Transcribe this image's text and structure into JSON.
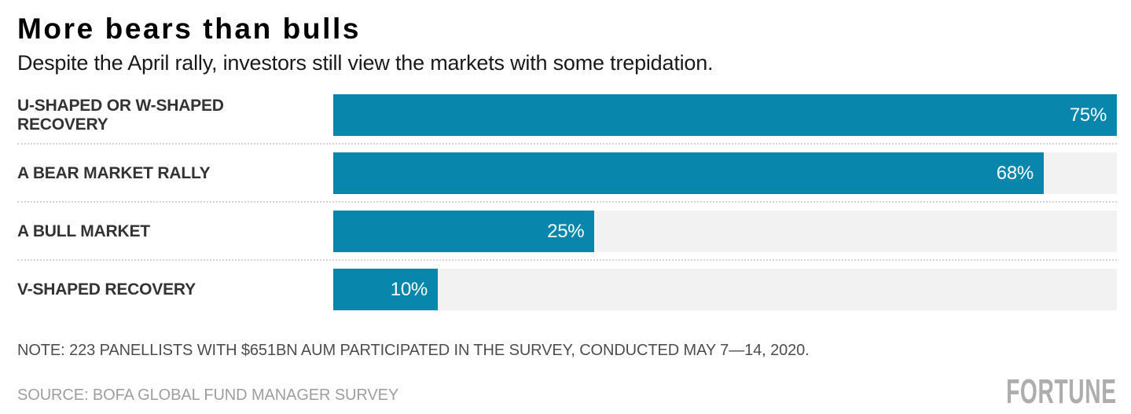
{
  "header": {
    "title": "More bears than bulls",
    "subtitle": "Despite the April rally, investors still view the markets with some trepidation."
  },
  "chart_data": {
    "type": "bar",
    "orientation": "horizontal",
    "title": "More bears than bulls",
    "subtitle": "Despite the April rally, investors still view the markets with some trepidation.",
    "categories": [
      "U-SHAPED OR W-SHAPED RECOVERY",
      "A BEAR MARKET RALLY",
      "A BULL MARKET",
      "V-SHAPED RECOVERY"
    ],
    "values": [
      75,
      68,
      25,
      10
    ],
    "value_labels": [
      "75%",
      "68%",
      "25%",
      "10%"
    ],
    "xlabel": "",
    "ylabel": "",
    "xlim": [
      0,
      75
    ],
    "grid": "off",
    "legend": "none",
    "bar_color": "#0886ac",
    "track_color": "#f2f2f2",
    "value_label_color": "#ffffff",
    "value_label_position": "inside-end"
  },
  "footer": {
    "note": "NOTE: 223 PANELLISTS WITH $651BN AUM PARTICIPATED IN THE SURVEY, CONDUCTED MAY 7—14, 2020.",
    "source": "SOURCE: BOFA GLOBAL FUND MANAGER SURVEY",
    "brand": "FORTUNE"
  },
  "colors": {
    "accent": "#0886ac",
    "track": "#f2f2f2",
    "separator": "#d4d4d4",
    "title": "#000000",
    "subtitle": "#1a1a1a",
    "category_label": "#333333",
    "note": "#4d4d4d",
    "source": "#9e9e9e",
    "brand": "#adadad"
  }
}
